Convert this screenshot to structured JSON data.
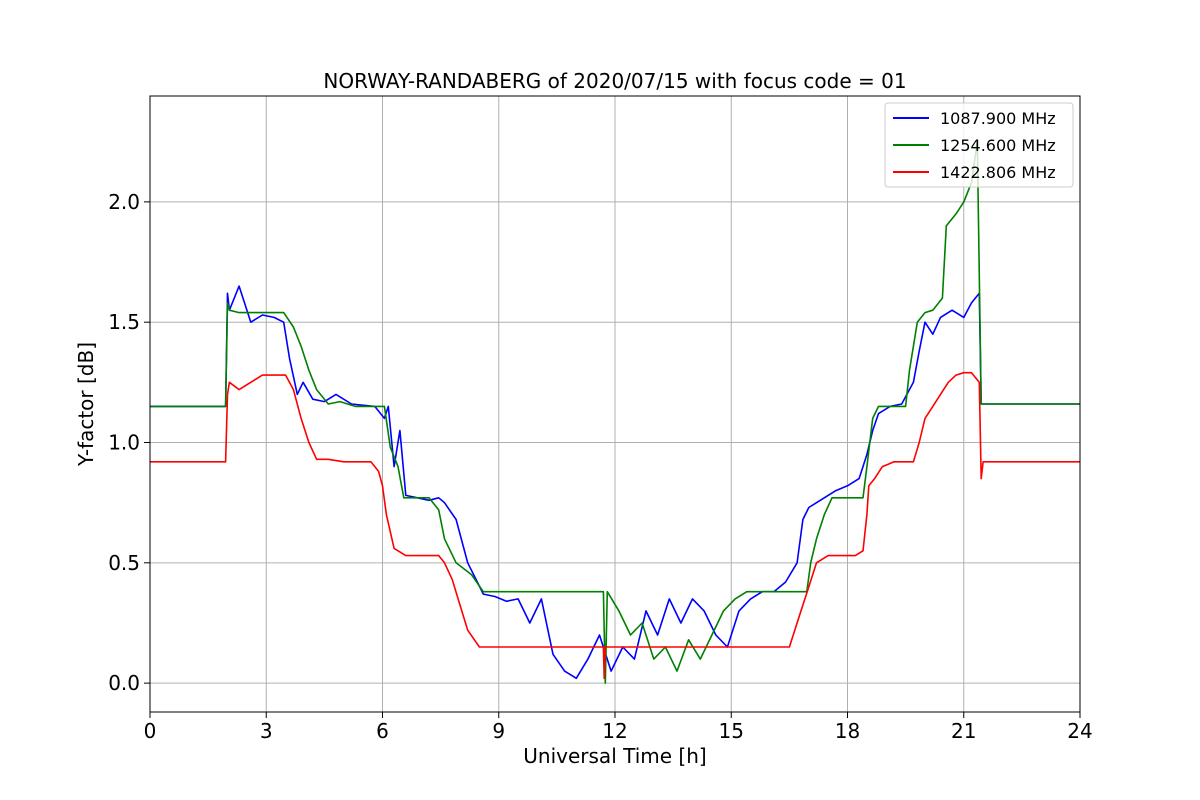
{
  "chart_data": {
    "type": "line",
    "title": "NORWAY-RANDABERG of 2020/07/15 with focus code = 01",
    "xlabel": "Universal Time [h]",
    "ylabel": "Y-factor [dB]",
    "xlim": [
      0,
      24
    ],
    "ylim": [
      -0.12,
      2.44
    ],
    "xticks": [
      0,
      3,
      6,
      9,
      12,
      15,
      18,
      21,
      24
    ],
    "xtick_labels": [
      "0",
      "3",
      "6",
      "9",
      "12",
      "15",
      "18",
      "21",
      "24"
    ],
    "yticks": [
      0.0,
      0.5,
      1.0,
      1.5,
      2.0
    ],
    "ytick_labels": [
      "0.0",
      "0.5",
      "1.0",
      "1.5",
      "2.0"
    ],
    "grid": true,
    "legend_position": "top-right",
    "series": [
      {
        "name": "1087.900 MHz",
        "color": "#0000ff",
        "x": [
          0,
          1.95,
          2.0,
          2.05,
          2.3,
          2.6,
          2.9,
          3.2,
          3.45,
          3.6,
          3.8,
          3.95,
          4.2,
          4.5,
          4.8,
          5.2,
          5.8,
          6.05,
          6.15,
          6.3,
          6.45,
          6.6,
          6.9,
          7.2,
          7.45,
          7.6,
          7.9,
          8.2,
          8.45,
          8.6,
          8.9,
          9.2,
          9.5,
          9.8,
          10.1,
          10.4,
          10.7,
          11.0,
          11.3,
          11.6,
          11.9,
          12.2,
          12.5,
          12.8,
          13.1,
          13.4,
          13.7,
          14.0,
          14.3,
          14.6,
          14.9,
          15.2,
          15.5,
          15.8,
          16.1,
          16.4,
          16.7,
          16.85,
          17.0,
          17.2,
          17.4,
          17.7,
          18.0,
          18.3,
          18.5,
          18.65,
          18.8,
          19.1,
          19.4,
          19.7,
          19.85,
          20.0,
          20.2,
          20.4,
          20.7,
          21.0,
          21.2,
          21.4,
          21.45,
          21.6,
          22.5,
          24
        ],
        "y": [
          1.15,
          1.15,
          1.62,
          1.55,
          1.65,
          1.5,
          1.53,
          1.52,
          1.5,
          1.35,
          1.2,
          1.25,
          1.18,
          1.17,
          1.2,
          1.16,
          1.15,
          1.1,
          1.15,
          0.9,
          1.05,
          0.78,
          0.77,
          0.76,
          0.77,
          0.75,
          0.68,
          0.5,
          0.42,
          0.37,
          0.36,
          0.34,
          0.35,
          0.25,
          0.35,
          0.12,
          0.05,
          0.02,
          0.1,
          0.2,
          0.05,
          0.15,
          0.1,
          0.3,
          0.2,
          0.35,
          0.25,
          0.35,
          0.3,
          0.2,
          0.15,
          0.3,
          0.35,
          0.38,
          0.38,
          0.42,
          0.5,
          0.68,
          0.73,
          0.75,
          0.77,
          0.8,
          0.82,
          0.85,
          0.95,
          1.05,
          1.12,
          1.15,
          1.16,
          1.25,
          1.38,
          1.5,
          1.45,
          1.52,
          1.55,
          1.52,
          1.58,
          1.62,
          1.16,
          1.16,
          1.16,
          1.16
        ]
      },
      {
        "name": "1254.600 MHz",
        "color": "#008000",
        "x": [
          0,
          1.95,
          2.0,
          2.05,
          2.3,
          2.6,
          2.9,
          3.2,
          3.45,
          3.7,
          3.9,
          4.1,
          4.3,
          4.6,
          4.9,
          5.3,
          5.8,
          6.05,
          6.2,
          6.4,
          6.55,
          6.8,
          7.2,
          7.45,
          7.6,
          7.9,
          8.3,
          8.6,
          8.8,
          9.1,
          9.5,
          10.0,
          10.5,
          11.0,
          11.5,
          11.7,
          11.75,
          11.8,
          12.1,
          12.4,
          12.7,
          13.0,
          13.3,
          13.6,
          13.9,
          14.2,
          14.5,
          14.8,
          15.1,
          15.4,
          15.7,
          16.0,
          16.4,
          16.8,
          16.95,
          17.05,
          17.2,
          17.4,
          17.6,
          18.0,
          18.4,
          18.5,
          18.65,
          18.8,
          19.1,
          19.5,
          19.6,
          19.8,
          20.0,
          20.2,
          20.45,
          20.55,
          20.8,
          21.0,
          21.2,
          21.35,
          21.45,
          21.5,
          22.0,
          24
        ],
        "y": [
          1.15,
          1.15,
          1.58,
          1.55,
          1.54,
          1.54,
          1.54,
          1.54,
          1.54,
          1.48,
          1.4,
          1.3,
          1.22,
          1.16,
          1.17,
          1.15,
          1.15,
          1.15,
          0.98,
          0.9,
          0.77,
          0.77,
          0.77,
          0.72,
          0.6,
          0.5,
          0.45,
          0.38,
          0.38,
          0.38,
          0.38,
          0.38,
          0.38,
          0.38,
          0.38,
          0.38,
          0.0,
          0.38,
          0.3,
          0.2,
          0.25,
          0.1,
          0.15,
          0.05,
          0.18,
          0.1,
          0.2,
          0.3,
          0.35,
          0.38,
          0.38,
          0.38,
          0.38,
          0.38,
          0.38,
          0.5,
          0.6,
          0.7,
          0.77,
          0.77,
          0.77,
          0.9,
          1.1,
          1.15,
          1.15,
          1.15,
          1.3,
          1.5,
          1.54,
          1.55,
          1.6,
          1.9,
          1.95,
          2.0,
          2.08,
          2.25,
          1.16,
          1.16,
          1.16,
          1.16
        ]
      },
      {
        "name": "1422.806 MHz",
        "color": "#ff0000",
        "x": [
          0,
          1.95,
          2.0,
          2.05,
          2.3,
          2.6,
          2.9,
          3.2,
          3.5,
          3.7,
          3.9,
          4.1,
          4.3,
          4.6,
          5.0,
          5.4,
          5.7,
          5.9,
          6.0,
          6.1,
          6.3,
          6.6,
          6.9,
          7.2,
          7.45,
          7.6,
          7.8,
          7.95,
          8.2,
          8.5,
          9.0,
          9.5,
          10.0,
          10.5,
          11.0,
          11.5,
          11.7,
          11.72,
          11.75,
          12.0,
          12.5,
          13.0,
          13.5,
          14.0,
          14.5,
          15.0,
          15.5,
          16.0,
          16.5,
          16.7,
          16.8,
          17.0,
          17.2,
          17.5,
          17.8,
          18.2,
          18.4,
          18.5,
          18.55,
          18.7,
          18.9,
          19.2,
          19.5,
          19.7,
          19.85,
          20.0,
          20.2,
          20.4,
          20.6,
          20.8,
          21.0,
          21.2,
          21.4,
          21.45,
          21.5,
          22.0,
          23.0,
          24
        ],
        "y": [
          0.92,
          0.92,
          1.2,
          1.25,
          1.22,
          1.25,
          1.28,
          1.28,
          1.28,
          1.22,
          1.1,
          1.0,
          0.93,
          0.93,
          0.92,
          0.92,
          0.92,
          0.88,
          0.82,
          0.7,
          0.56,
          0.53,
          0.53,
          0.53,
          0.53,
          0.5,
          0.43,
          0.35,
          0.22,
          0.15,
          0.15,
          0.15,
          0.15,
          0.15,
          0.15,
          0.15,
          0.15,
          0.02,
          0.15,
          0.15,
          0.15,
          0.15,
          0.15,
          0.15,
          0.15,
          0.15,
          0.15,
          0.15,
          0.15,
          0.25,
          0.3,
          0.4,
          0.5,
          0.53,
          0.53,
          0.53,
          0.55,
          0.7,
          0.82,
          0.85,
          0.9,
          0.92,
          0.92,
          0.92,
          1.0,
          1.1,
          1.15,
          1.2,
          1.25,
          1.28,
          1.29,
          1.29,
          1.25,
          0.85,
          0.92,
          0.92,
          0.92,
          0.92
        ]
      }
    ]
  }
}
